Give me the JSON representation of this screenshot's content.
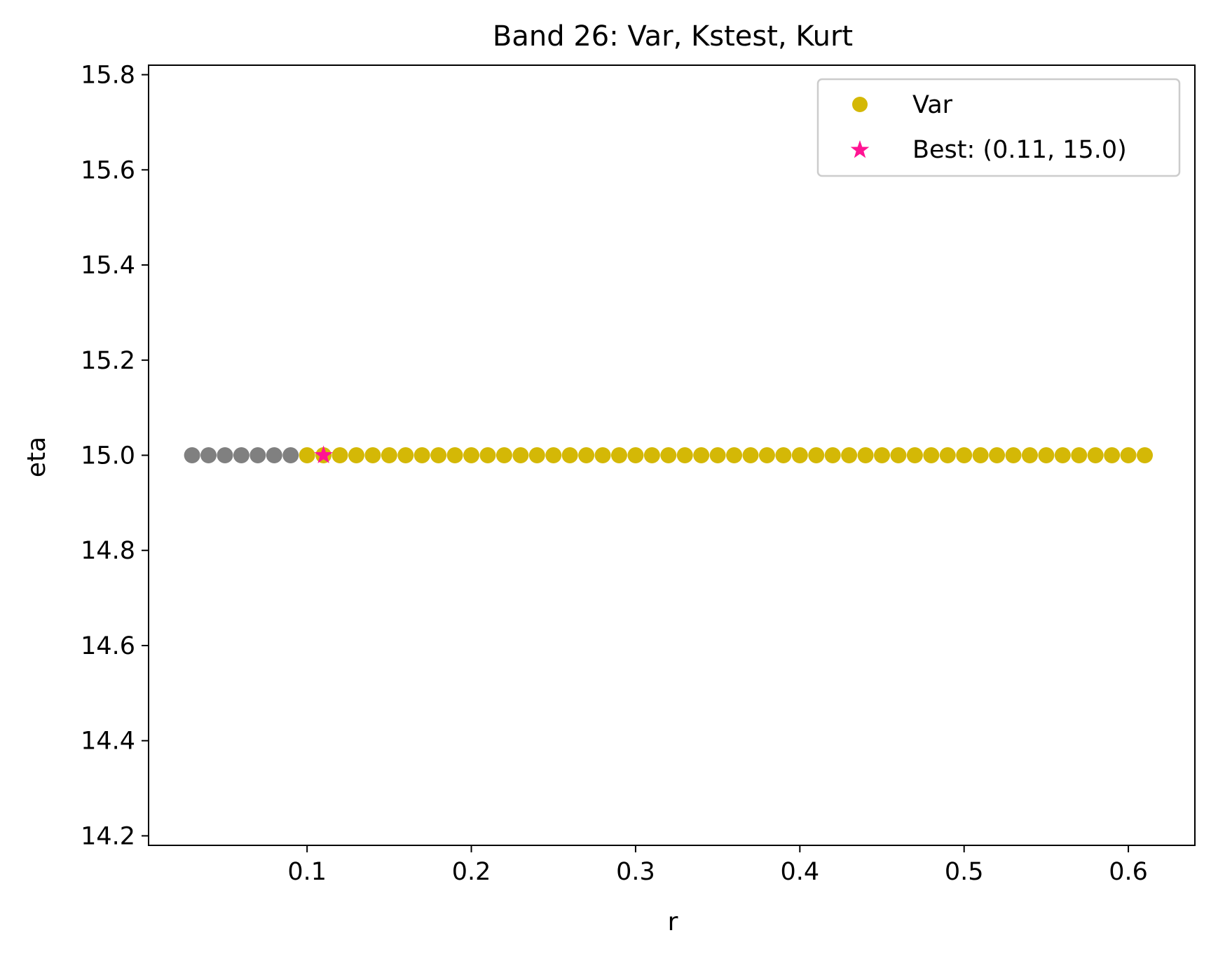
{
  "chart_data": {
    "type": "scatter",
    "title": "Band 26: Var, Kstest, Kurt",
    "xlabel": "r",
    "ylabel": "eta",
    "xlim": [
      0.0035,
      0.6405
    ],
    "ylim": [
      14.18,
      15.82
    ],
    "xticks": [
      "0.1",
      "0.2",
      "0.3",
      "0.4",
      "0.5",
      "0.6"
    ],
    "yticks": [
      "14.2",
      "14.4",
      "14.6",
      "14.8",
      "15.0",
      "15.2",
      "15.4",
      "15.6",
      "15.8"
    ],
    "grid": false,
    "legend_position": "top-right",
    "series": [
      {
        "color": "#808080",
        "x": [
          0.03,
          0.04,
          0.05,
          0.06,
          0.07,
          0.08,
          0.09
        ],
        "y": [
          15.0,
          15.0,
          15.0,
          15.0,
          15.0,
          15.0,
          15.0
        ]
      },
      {
        "name": "Var",
        "color": "#d4b806",
        "x": [
          0.1,
          0.11,
          0.12,
          0.13,
          0.14,
          0.15,
          0.16,
          0.17,
          0.18,
          0.19,
          0.2,
          0.21,
          0.22,
          0.23,
          0.24,
          0.25,
          0.26,
          0.27,
          0.28,
          0.29,
          0.3,
          0.31,
          0.32,
          0.33,
          0.34,
          0.35,
          0.36,
          0.37,
          0.38,
          0.39,
          0.4,
          0.41,
          0.42,
          0.43,
          0.44,
          0.45,
          0.46,
          0.47,
          0.48,
          0.49,
          0.5,
          0.51,
          0.52,
          0.53,
          0.54,
          0.55,
          0.56,
          0.57,
          0.58,
          0.59,
          0.6,
          0.61
        ],
        "y": [
          15.0,
          15.0,
          15.0,
          15.0,
          15.0,
          15.0,
          15.0,
          15.0,
          15.0,
          15.0,
          15.0,
          15.0,
          15.0,
          15.0,
          15.0,
          15.0,
          15.0,
          15.0,
          15.0,
          15.0,
          15.0,
          15.0,
          15.0,
          15.0,
          15.0,
          15.0,
          15.0,
          15.0,
          15.0,
          15.0,
          15.0,
          15.0,
          15.0,
          15.0,
          15.0,
          15.0,
          15.0,
          15.0,
          15.0,
          15.0,
          15.0,
          15.0,
          15.0,
          15.0,
          15.0,
          15.0,
          15.0,
          15.0,
          15.0,
          15.0,
          15.0,
          15.0
        ]
      }
    ],
    "best": {
      "name": "Best: (0.11, 15.0)",
      "color": "#ff1493",
      "x": 0.11,
      "y": 15.0
    }
  }
}
